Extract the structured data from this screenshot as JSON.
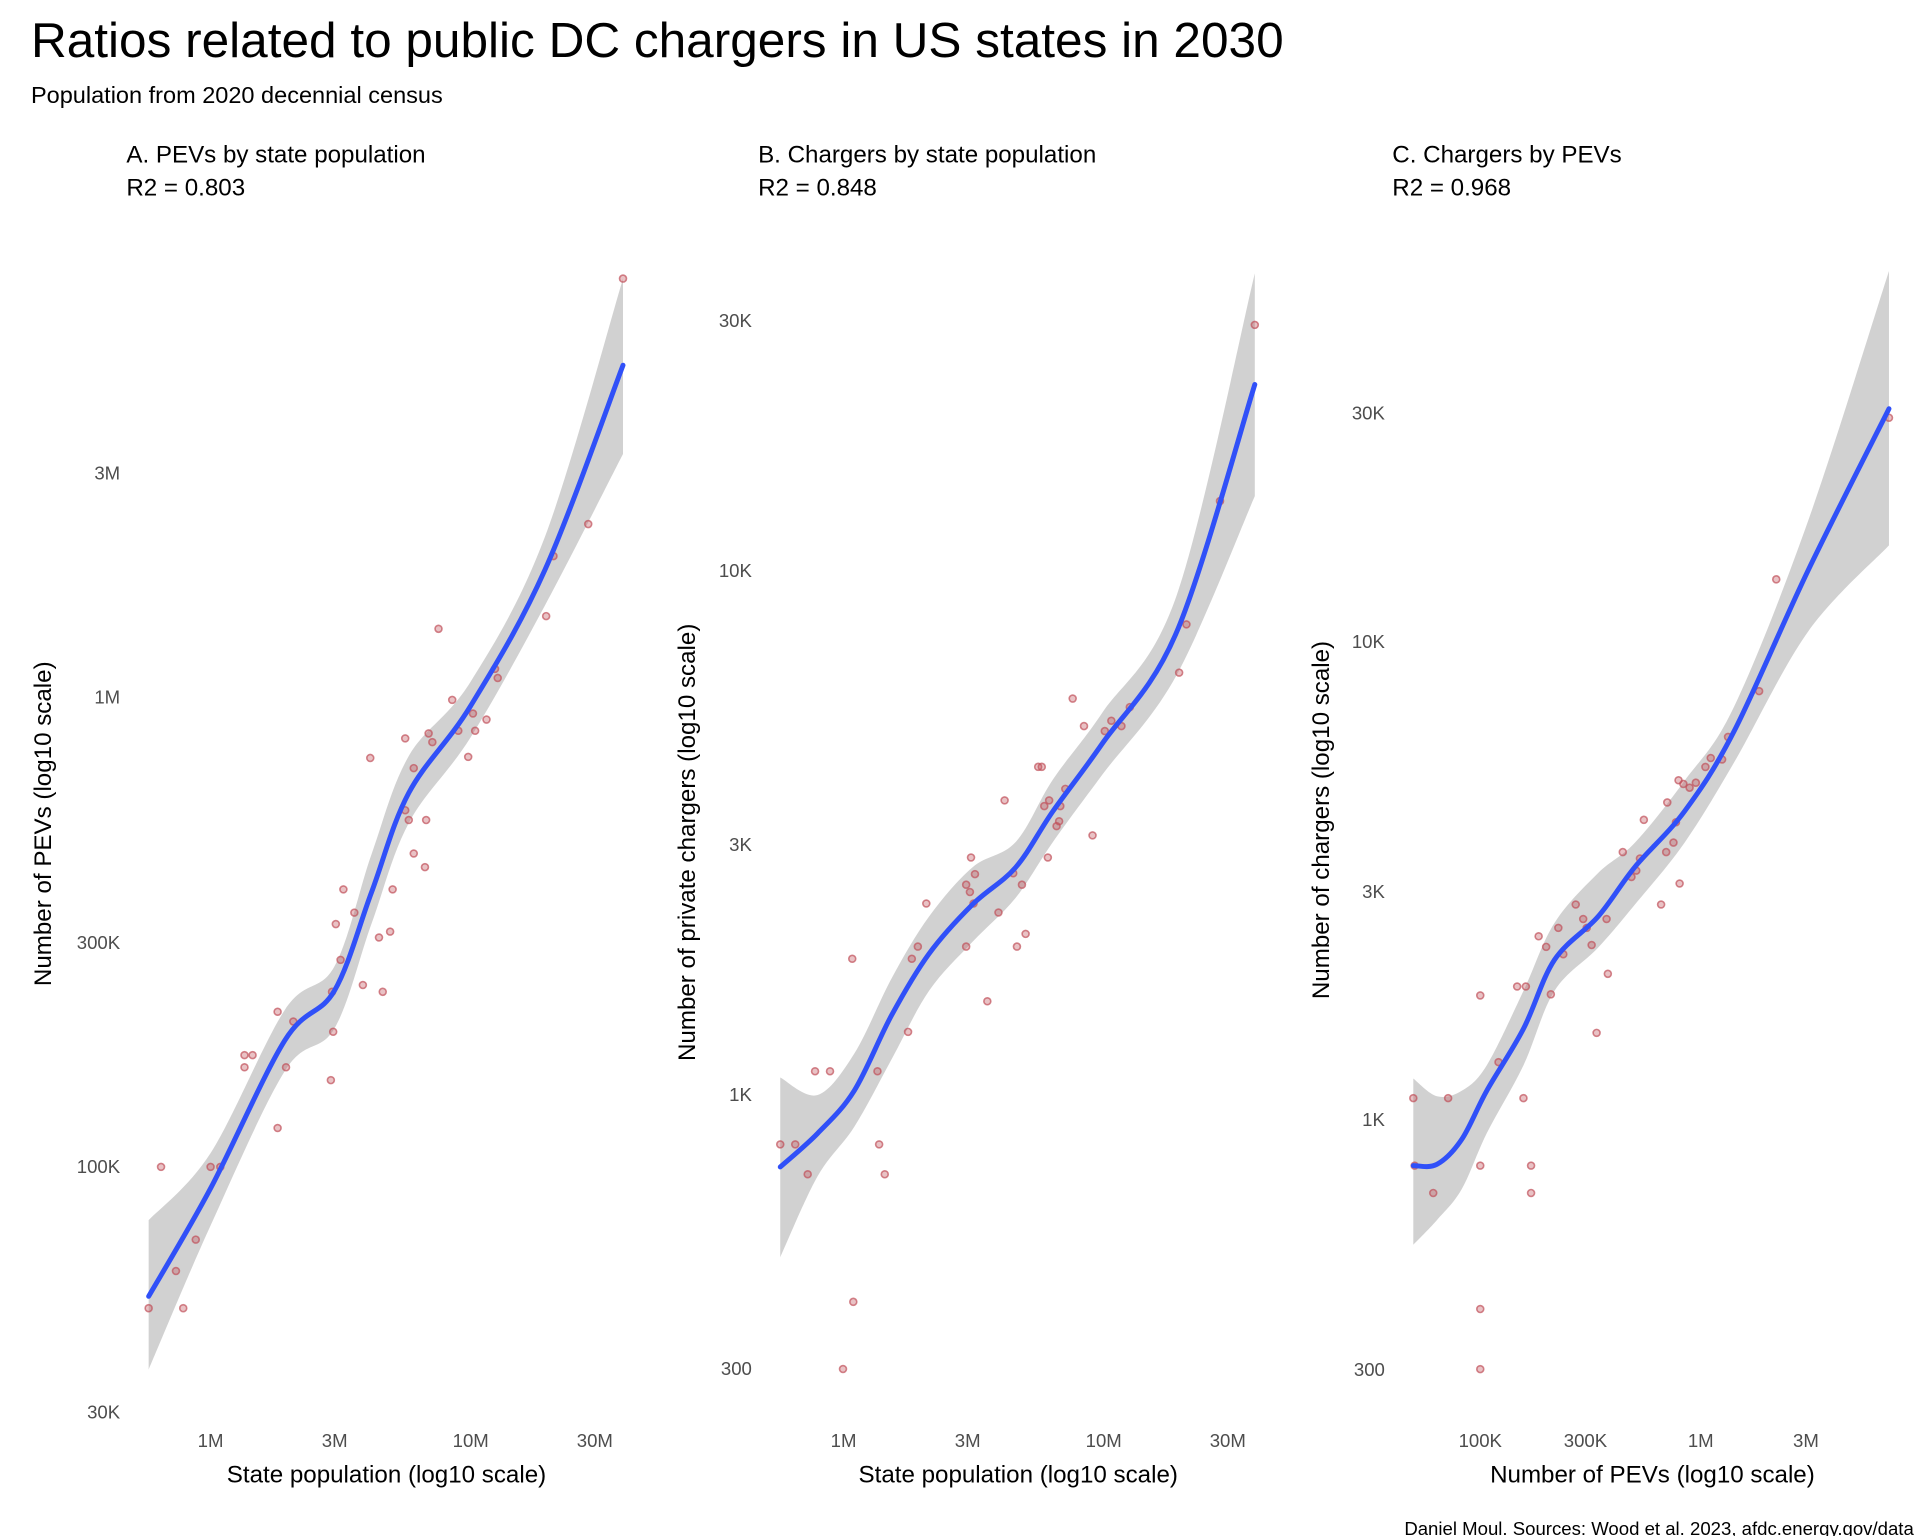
{
  "title": "Ratios related to public DC chargers in US states in 2030",
  "subtitle": "Population from 2020 decennial census",
  "caption": "Daniel Moul. Sources: Wood et al. 2023, afdc.energy.gov/data",
  "colors": {
    "points": "#c0505a",
    "fit_line": "#3050f8",
    "ci_band": "#cccccc",
    "tick_text": "#4d4d4d"
  },
  "chart_data": [
    {
      "type": "scatter",
      "title": "A. PEVs by state population",
      "r2_label": "R2 = 0.803",
      "xlabel": "State population (log10 scale)",
      "ylabel": "Number of PEVs (log10 scale)",
      "x_scale": "log10",
      "y_scale": "log10",
      "grid": false,
      "x_ticks": [
        {
          "value": 1000000,
          "label": "1M"
        },
        {
          "value": 3000000,
          "label": "3M"
        },
        {
          "value": 10000000,
          "label": "10M"
        },
        {
          "value": 30000000,
          "label": "30M"
        }
      ],
      "y_ticks": [
        {
          "value": 30000,
          "label": "30K"
        },
        {
          "value": 100000,
          "label": "100K"
        },
        {
          "value": 300000,
          "label": "300K"
        },
        {
          "value": 1000000,
          "label": "1M"
        },
        {
          "value": 3000000,
          "label": "3M"
        }
      ],
      "points": [
        [
          578000,
          50000
        ],
        [
          645000,
          100000
        ],
        [
          736000,
          60000
        ],
        [
          785000,
          50000
        ],
        [
          877000,
          70000
        ],
        [
          1000000,
          100000
        ],
        [
          1090000,
          100000
        ],
        [
          1350000,
          173000
        ],
        [
          1450000,
          173000
        ],
        [
          1350000,
          163000
        ],
        [
          1810000,
          121000
        ],
        [
          1810000,
          214000
        ],
        [
          1950000,
          163000
        ],
        [
          2080000,
          204000
        ],
        [
          2900000,
          153000
        ],
        [
          2930000,
          236000
        ],
        [
          2960000,
          194000
        ],
        [
          3030000,
          329000
        ],
        [
          3160000,
          276000
        ],
        [
          3240000,
          390000
        ],
        [
          3570000,
          348000
        ],
        [
          3850000,
          244000
        ],
        [
          4110000,
          743000
        ],
        [
          4440000,
          308000
        ],
        [
          4590000,
          236000
        ],
        [
          4900000,
          317000
        ],
        [
          5010000,
          390000
        ],
        [
          5600000,
          818000
        ],
        [
          5600000,
          575000
        ],
        [
          5780000,
          548000
        ],
        [
          6040000,
          707000
        ],
        [
          6040000,
          465000
        ],
        [
          6670000,
          435000
        ],
        [
          6740000,
          548000
        ],
        [
          6890000,
          838000
        ],
        [
          7120000,
          803000
        ],
        [
          7520000,
          1400000
        ],
        [
          8490000,
          988000
        ],
        [
          8960000,
          849000
        ],
        [
          9780000,
          747000
        ],
        [
          10200000,
          924000
        ],
        [
          10400000,
          849000
        ],
        [
          11500000,
          897000
        ],
        [
          12400000,
          1150000
        ],
        [
          12700000,
          1100000
        ],
        [
          19500000,
          1490000
        ],
        [
          20800000,
          2000000
        ],
        [
          28300000,
          2340000
        ],
        [
          38500000,
          7800000
        ]
      ],
      "fit": {
        "x": [
          578000,
          1000000,
          1930000,
          2990000,
          4160000,
          5780000,
          9990000,
          19300000,
          38500000
        ],
        "y": [
          53000,
          90000,
          186000,
          237000,
          385000,
          626000,
          959000,
          1870000,
          5100000
        ],
        "ci_upper": [
          77000,
          107000,
          216000,
          267000,
          464000,
          750000,
          1080000,
          2200000,
          7800000
        ],
        "ci_lower": [
          37000,
          75000,
          160000,
          197000,
          330000,
          540000,
          822000,
          1570000,
          3300000
        ]
      }
    },
    {
      "type": "scatter",
      "title": "B. Chargers by state population",
      "r2_label": "R2 = 0.848",
      "xlabel": "State population (log10 scale)",
      "ylabel": "Number of private chargers (log10 scale)",
      "x_scale": "log10",
      "y_scale": "log10",
      "grid": false,
      "x_ticks": [
        {
          "value": 1000000,
          "label": "1M"
        },
        {
          "value": 3000000,
          "label": "3M"
        },
        {
          "value": 10000000,
          "label": "10M"
        },
        {
          "value": 30000000,
          "label": "30M"
        }
      ],
      "y_ticks": [
        {
          "value": 300,
          "label": "300"
        },
        {
          "value": 1000,
          "label": "1K"
        },
        {
          "value": 3000,
          "label": "3K"
        },
        {
          "value": 10000,
          "label": "10K"
        },
        {
          "value": 30000,
          "label": "30K"
        }
      ],
      "points": [
        [
          571000,
          805
        ],
        [
          652000,
          805
        ],
        [
          728000,
          706
        ],
        [
          777000,
          1110
        ],
        [
          887000,
          1110
        ],
        [
          995000,
          300
        ],
        [
          1080000,
          1820
        ],
        [
          1090000,
          403
        ],
        [
          1350000,
          1110
        ],
        [
          1370000,
          805
        ],
        [
          1440000,
          706
        ],
        [
          1770000,
          1320
        ],
        [
          1830000,
          1820
        ],
        [
          1930000,
          1920
        ],
        [
          2080000,
          2320
        ],
        [
          2960000,
          1920
        ],
        [
          3090000,
          2840
        ],
        [
          3200000,
          2640
        ],
        [
          2960000,
          2520
        ],
        [
          3060000,
          2440
        ],
        [
          3160000,
          2320
        ],
        [
          3570000,
          1510
        ],
        [
          3940000,
          2230
        ],
        [
          4160000,
          3650
        ],
        [
          4490000,
          2650
        ],
        [
          4640000,
          1920
        ],
        [
          4850000,
          2520
        ],
        [
          5010000,
          2030
        ],
        [
          5600000,
          4230
        ],
        [
          5780000,
          4230
        ],
        [
          5910000,
          3560
        ],
        [
          6100000,
          2840
        ],
        [
          6170000,
          3650
        ],
        [
          6590000,
          3260
        ],
        [
          6740000,
          3330
        ],
        [
          6810000,
          3560
        ],
        [
          7120000,
          3840
        ],
        [
          7600000,
          5710
        ],
        [
          8400000,
          5060
        ],
        [
          9060000,
          3130
        ],
        [
          10100000,
          4950
        ],
        [
          10700000,
          5180
        ],
        [
          11700000,
          5060
        ],
        [
          12600000,
          5500
        ],
        [
          19500000,
          6400
        ],
        [
          20800000,
          7910
        ],
        [
          28000000,
          13600
        ],
        [
          38100000,
          29500
        ]
      ],
      "fit": {
        "x": [
          571000,
          795000,
          1100000,
          1530000,
          2130000,
          3130000,
          4590000,
          6380000,
          9890000,
          19100000,
          38100000
        ],
        "y": [
          729,
          845,
          1020,
          1420,
          1860,
          2310,
          2720,
          3480,
          4690,
          7660,
          22700
        ],
        "ci_upper": [
          1080,
          1000,
          1200,
          1670,
          2190,
          2720,
          3040,
          4000,
          5370,
          9000,
          37000
        ],
        "ci_lower": [
          490,
          700,
          870,
          1170,
          1580,
          1960,
          2380,
          3040,
          4090,
          6340,
          13900
        ]
      }
    },
    {
      "type": "scatter",
      "title": "C. Chargers by PEVs",
      "r2_label": "R2 = 0.968",
      "xlabel": "Number of PEVs (log10 scale)",
      "ylabel": "Number of chargers (log10 scale)",
      "x_scale": "log10",
      "y_scale": "log10",
      "grid": false,
      "x_ticks": [
        {
          "value": 100000,
          "label": "100K"
        },
        {
          "value": 300000,
          "label": "300K"
        },
        {
          "value": 1000000,
          "label": "1M"
        },
        {
          "value": 3000000,
          "label": "3M"
        }
      ],
      "y_ticks": [
        {
          "value": 300,
          "label": "300"
        },
        {
          "value": 1000,
          "label": "1K"
        },
        {
          "value": 3000,
          "label": "3K"
        },
        {
          "value": 10000,
          "label": "10K"
        },
        {
          "value": 30000,
          "label": "30K"
        }
      ],
      "points": [
        [
          49700,
          1110
        ],
        [
          50400,
          802
        ],
        [
          61200,
          703
        ],
        [
          71500,
          1110
        ],
        [
          100000,
          1820
        ],
        [
          100000,
          802
        ],
        [
          100000,
          402
        ],
        [
          100000,
          301
        ],
        [
          121000,
          1320
        ],
        [
          147000,
          1900
        ],
        [
          157000,
          1110
        ],
        [
          161000,
          1900
        ],
        [
          170000,
          802
        ],
        [
          170000,
          703
        ],
        [
          184000,
          2420
        ],
        [
          199000,
          2300
        ],
        [
          209000,
          1830
        ],
        [
          226000,
          2520
        ],
        [
          238000,
          2220
        ],
        [
          271000,
          2820
        ],
        [
          293000,
          2630
        ],
        [
          304000,
          2520
        ],
        [
          320000,
          2320
        ],
        [
          337000,
          1520
        ],
        [
          374000,
          2630
        ],
        [
          379000,
          2020
        ],
        [
          443000,
          3630
        ],
        [
          485000,
          3220
        ],
        [
          510000,
          3320
        ],
        [
          530000,
          3520
        ],
        [
          552000,
          4240
        ],
        [
          661000,
          2820
        ],
        [
          697000,
          3630
        ],
        [
          705000,
          4610
        ],
        [
          752000,
          3800
        ],
        [
          772000,
          4190
        ],
        [
          793000,
          5130
        ],
        [
          802000,
          3120
        ],
        [
          834000,
          5040
        ],
        [
          890000,
          4950
        ],
        [
          950000,
          5070
        ],
        [
          1050000,
          5470
        ],
        [
          1110000,
          5710
        ],
        [
          1250000,
          5670
        ],
        [
          1330000,
          6320
        ],
        [
          1840000,
          7880
        ],
        [
          2200000,
          13500
        ],
        [
          7140000,
          29400
        ]
      ],
      "fit": {
        "x": [
          49700,
          63600,
          82400,
          107000,
          157000,
          217000,
          342000,
          503000,
          845000,
          1420000,
          3070000,
          7140000
        ],
        "y": [
          802,
          807,
          910,
          1150,
          1550,
          2160,
          2660,
          3380,
          4420,
          6510,
          14100,
          30700
        ],
        "ci_upper": [
          1220,
          1120,
          1150,
          1300,
          1860,
          2580,
          3280,
          3800,
          5120,
          7330,
          17900,
          59600
        ],
        "ci_lower": [
          548,
          617,
          716,
          937,
          1300,
          1860,
          2290,
          2820,
          3800,
          5600,
          10500,
          15900
        ]
      }
    }
  ]
}
